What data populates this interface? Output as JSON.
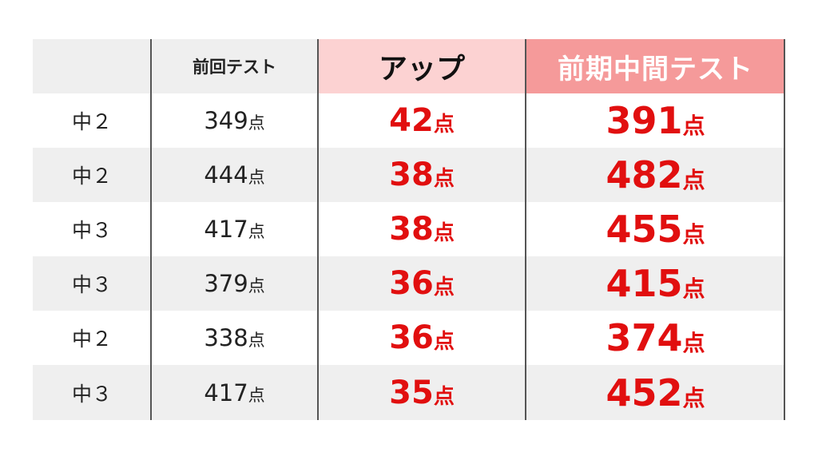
{
  "header": {
    "col0": "",
    "col1": "前回テスト",
    "col2": "アップ",
    "col3": "前期中間テスト"
  },
  "unit": "点",
  "rows": [
    {
      "grade": "中２",
      "prev": "349",
      "up": "42",
      "mid": "391"
    },
    {
      "grade": "中２",
      "prev": "444",
      "up": "38",
      "mid": "482"
    },
    {
      "grade": "中３",
      "prev": "417",
      "up": "38",
      "mid": "455"
    },
    {
      "grade": "中３",
      "prev": "379",
      "up": "36",
      "mid": "415"
    },
    {
      "grade": "中２",
      "prev": "338",
      "up": "36",
      "mid": "374"
    },
    {
      "grade": "中３",
      "prev": "417",
      "up": "35",
      "mid": "452"
    }
  ],
  "colors": {
    "accent_red": "#e10f0f",
    "header_pink_light": "#fcd2d2",
    "header_pink": "#f59a9a",
    "row_shade": "#efefef"
  }
}
